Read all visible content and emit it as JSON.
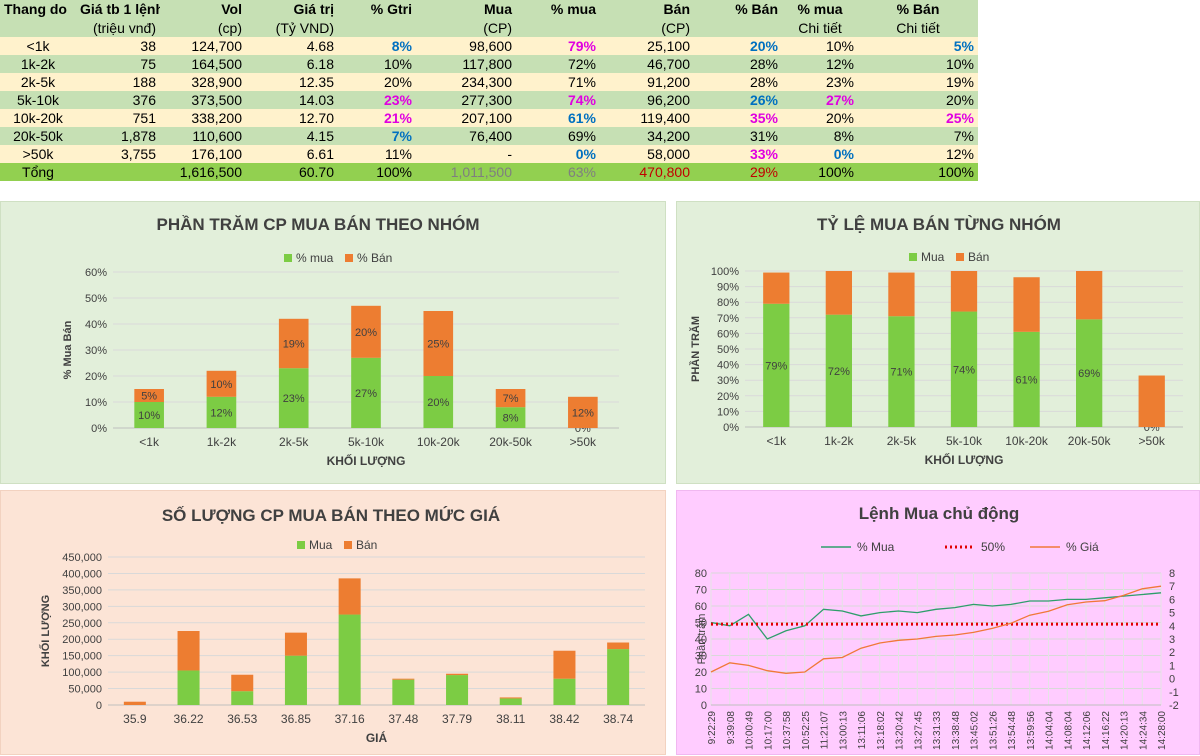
{
  "table": {
    "headers": [
      [
        "Thang do",
        "Giá tb 1 lệnh",
        "Vol",
        "Giá trị",
        "% Gtri",
        "Mua",
        "% mua",
        "Bán",
        "% Bán",
        "% mua",
        "% Bán"
      ],
      [
        "",
        "(triệu vnđ)",
        "(cp)",
        "(Tỷ VND)",
        "",
        "(CP)",
        "",
        "(CP)",
        "",
        "Chi tiết",
        "Chi tiết"
      ]
    ],
    "rows": [
      {
        "cells": [
          "<1k",
          "38",
          "124,700",
          "4.68",
          "8%",
          "98,600",
          "79%",
          "25,100",
          "20%",
          "10%",
          "5%"
        ],
        "styles": [
          "",
          "",
          "",
          "",
          "blue",
          "",
          "magenta",
          "",
          "blue",
          "",
          "blue"
        ]
      },
      {
        "cells": [
          "1k-2k",
          "75",
          "164,500",
          "6.18",
          "10%",
          "117,800",
          "72%",
          "46,700",
          "28%",
          "12%",
          "10%"
        ],
        "styles": [
          "",
          "",
          "",
          "",
          "",
          "",
          "",
          "",
          "",
          "",
          ""
        ]
      },
      {
        "cells": [
          "2k-5k",
          "188",
          "328,900",
          "12.35",
          "20%",
          "234,300",
          "71%",
          "91,200",
          "28%",
          "23%",
          "19%"
        ],
        "styles": [
          "",
          "",
          "",
          "",
          "",
          "",
          "",
          "",
          "",
          "",
          ""
        ]
      },
      {
        "cells": [
          "5k-10k",
          "376",
          "373,500",
          "14.03",
          "23%",
          "277,300",
          "74%",
          "96,200",
          "26%",
          "27%",
          "20%"
        ],
        "styles": [
          "",
          "",
          "",
          "",
          "magenta",
          "",
          "magenta",
          "",
          "blue",
          "magenta",
          ""
        ]
      },
      {
        "cells": [
          "10k-20k",
          "751",
          "338,200",
          "12.70",
          "21%",
          "207,100",
          "61%",
          "119,400",
          "35%",
          "20%",
          "25%"
        ],
        "styles": [
          "",
          "",
          "",
          "",
          "magenta",
          "",
          "blue",
          "",
          "magenta",
          "",
          "magenta"
        ]
      },
      {
        "cells": [
          "20k-50k",
          "1,878",
          "110,600",
          "4.15",
          "7%",
          "76,400",
          "69%",
          "34,200",
          "31%",
          "8%",
          "7%"
        ],
        "styles": [
          "",
          "",
          "",
          "",
          "blue",
          "",
          "",
          "",
          "",
          "",
          ""
        ]
      },
      {
        "cells": [
          ">50k",
          "3,755",
          "176,100",
          "6.61",
          "11%",
          "-",
          "0%",
          "58,000",
          "33%",
          "0%",
          "12%"
        ],
        "styles": [
          "",
          "",
          "",
          "",
          "",
          "",
          "blue",
          "",
          "magenta",
          "blue",
          ""
        ]
      }
    ],
    "total": {
      "cells": [
        "Tổng",
        "",
        "1,616,500",
        "60.70",
        "100%",
        "1,011,500",
        "63%",
        "470,800",
        "29%",
        "100%",
        "100%"
      ],
      "styles": [
        "",
        "",
        "",
        "",
        "",
        "grey",
        "grey",
        "red",
        "red",
        "",
        ""
      ]
    }
  },
  "colors": {
    "buy": "#7ccc44",
    "sell": "#ed7d31",
    "red_line": "#e00000",
    "buy_line": "#2e9e6b",
    "price_line": "#f07838"
  },
  "chart_data": [
    {
      "type": "bar",
      "stacked": true,
      "title": "PHẦN TRĂM CP MUA BÁN THEO NHÓM",
      "xlabel": "KHỐI LƯỢNG",
      "ylabel": "% Mua Bán",
      "categories": [
        "<1k",
        "1k-2k",
        "2k-5k",
        "5k-10k",
        "10k-20k",
        "20k-50k",
        ">50k"
      ],
      "ylim": [
        0,
        60
      ],
      "yticks": [
        "0%",
        "10%",
        "20%",
        "30%",
        "40%",
        "50%",
        "60%"
      ],
      "series": [
        {
          "name": "% mua",
          "values": [
            10,
            12,
            23,
            27,
            20,
            8,
            0
          ],
          "labels": [
            "10%",
            "12%",
            "23%",
            "27%",
            "20%",
            "8%",
            "0%"
          ]
        },
        {
          "name": "% Bán",
          "values": [
            5,
            10,
            19,
            20,
            25,
            7,
            12
          ],
          "labels": [
            "5%",
            "10%",
            "19%",
            "20%",
            "25%",
            "7%",
            "12%"
          ]
        }
      ]
    },
    {
      "type": "bar",
      "stacked": true,
      "title": "TỶ LỆ MUA BÁN TỪNG NHÓM",
      "xlabel": "KHỐI LƯỢNG",
      "ylabel": "PHẦN TRĂM",
      "categories": [
        "<1k",
        "1k-2k",
        "2k-5k",
        "5k-10k",
        "10k-20k",
        "20k-50k",
        ">50k"
      ],
      "ylim": [
        0,
        100
      ],
      "yticks": [
        "0%",
        "10%",
        "20%",
        "30%",
        "40%",
        "50%",
        "60%",
        "70%",
        "80%",
        "90%",
        "100%"
      ],
      "series": [
        {
          "name": "Mua",
          "values": [
            79,
            72,
            71,
            74,
            61,
            69,
            0
          ],
          "labels": [
            "79%",
            "72%",
            "71%",
            "74%",
            "61%",
            "69%",
            "0%"
          ]
        },
        {
          "name": "Bán",
          "values": [
            20,
            28,
            28,
            26,
            35,
            31,
            33
          ]
        }
      ]
    },
    {
      "type": "bar",
      "stacked": true,
      "title": "SỐ LƯỢNG CP MUA BÁN THEO MỨC GIÁ",
      "xlabel": "GIÁ",
      "ylabel": "KHỐI LƯỢNG",
      "categories": [
        "35.9",
        "36.22",
        "36.53",
        "36.85",
        "37.16",
        "37.48",
        "37.79",
        "38.11",
        "38.42",
        "38.74"
      ],
      "ylim": [
        0,
        450000
      ],
      "yticks": [
        "0",
        "50,000",
        "100,000",
        "150,000",
        "200,000",
        "250,000",
        "300,000",
        "350,000",
        "400,000",
        "450,000"
      ],
      "series": [
        {
          "name": "Mua",
          "values": [
            0,
            105000,
            42000,
            150000,
            275000,
            77000,
            91000,
            20000,
            80000,
            170000
          ]
        },
        {
          "name": "Bán",
          "values": [
            10000,
            120000,
            50000,
            70000,
            110000,
            3000,
            4000,
            3000,
            85000,
            20000
          ]
        }
      ]
    },
    {
      "type": "line",
      "title": "Lệnh Mua chủ động",
      "ylabel": "Phần trăm",
      "ylim": [
        0,
        80
      ],
      "yticks": [
        "0",
        "10",
        "20",
        "30",
        "40",
        "50",
        "60",
        "70",
        "80"
      ],
      "y2lim": [
        -2,
        8
      ],
      "y2ticks": [
        "-2",
        "-1",
        "0",
        "1",
        "2",
        "3",
        "4",
        "5",
        "6",
        "7",
        "8"
      ],
      "x": [
        "9:22:29",
        "9:39:08",
        "10:00:49",
        "10:17:00",
        "10:37:58",
        "10:52:25",
        "11:21:07",
        "13:00:13",
        "13:11:06",
        "13:18:02",
        "13:20:42",
        "13:27:45",
        "13:31:33",
        "13:38:48",
        "13:45:02",
        "13:51:26",
        "13:54:48",
        "13:59:56",
        "14:04:04",
        "14:08:04",
        "14:12:06",
        "14:16:22",
        "14:20:13",
        "14:24:34",
        "14:28:00"
      ],
      "legend": [
        "% Mua",
        "50%",
        "% Giá"
      ],
      "series": [
        {
          "name": "% Mua",
          "axis": "left",
          "values": [
            50,
            48,
            55,
            40,
            45,
            48,
            58,
            57,
            54,
            56,
            57,
            56,
            58,
            59,
            61,
            60,
            61,
            63,
            63,
            64,
            64,
            65,
            66,
            67,
            68
          ]
        },
        {
          "name": "50%",
          "axis": "left",
          "values": [
            49,
            49,
            49,
            49,
            49,
            49,
            49,
            49,
            49,
            49,
            49,
            49,
            49,
            49,
            49,
            49,
            49,
            49,
            49,
            49,
            49,
            49,
            49,
            49,
            49
          ]
        },
        {
          "name": "% Giá",
          "axis": "right",
          "values": [
            0.5,
            1.2,
            1.0,
            0.6,
            0.4,
            0.5,
            1.5,
            1.6,
            2.3,
            2.7,
            2.9,
            3.0,
            3.2,
            3.3,
            3.5,
            3.8,
            4.2,
            4.8,
            5.1,
            5.6,
            5.8,
            5.9,
            6.3,
            6.8,
            7.0
          ]
        }
      ]
    }
  ]
}
